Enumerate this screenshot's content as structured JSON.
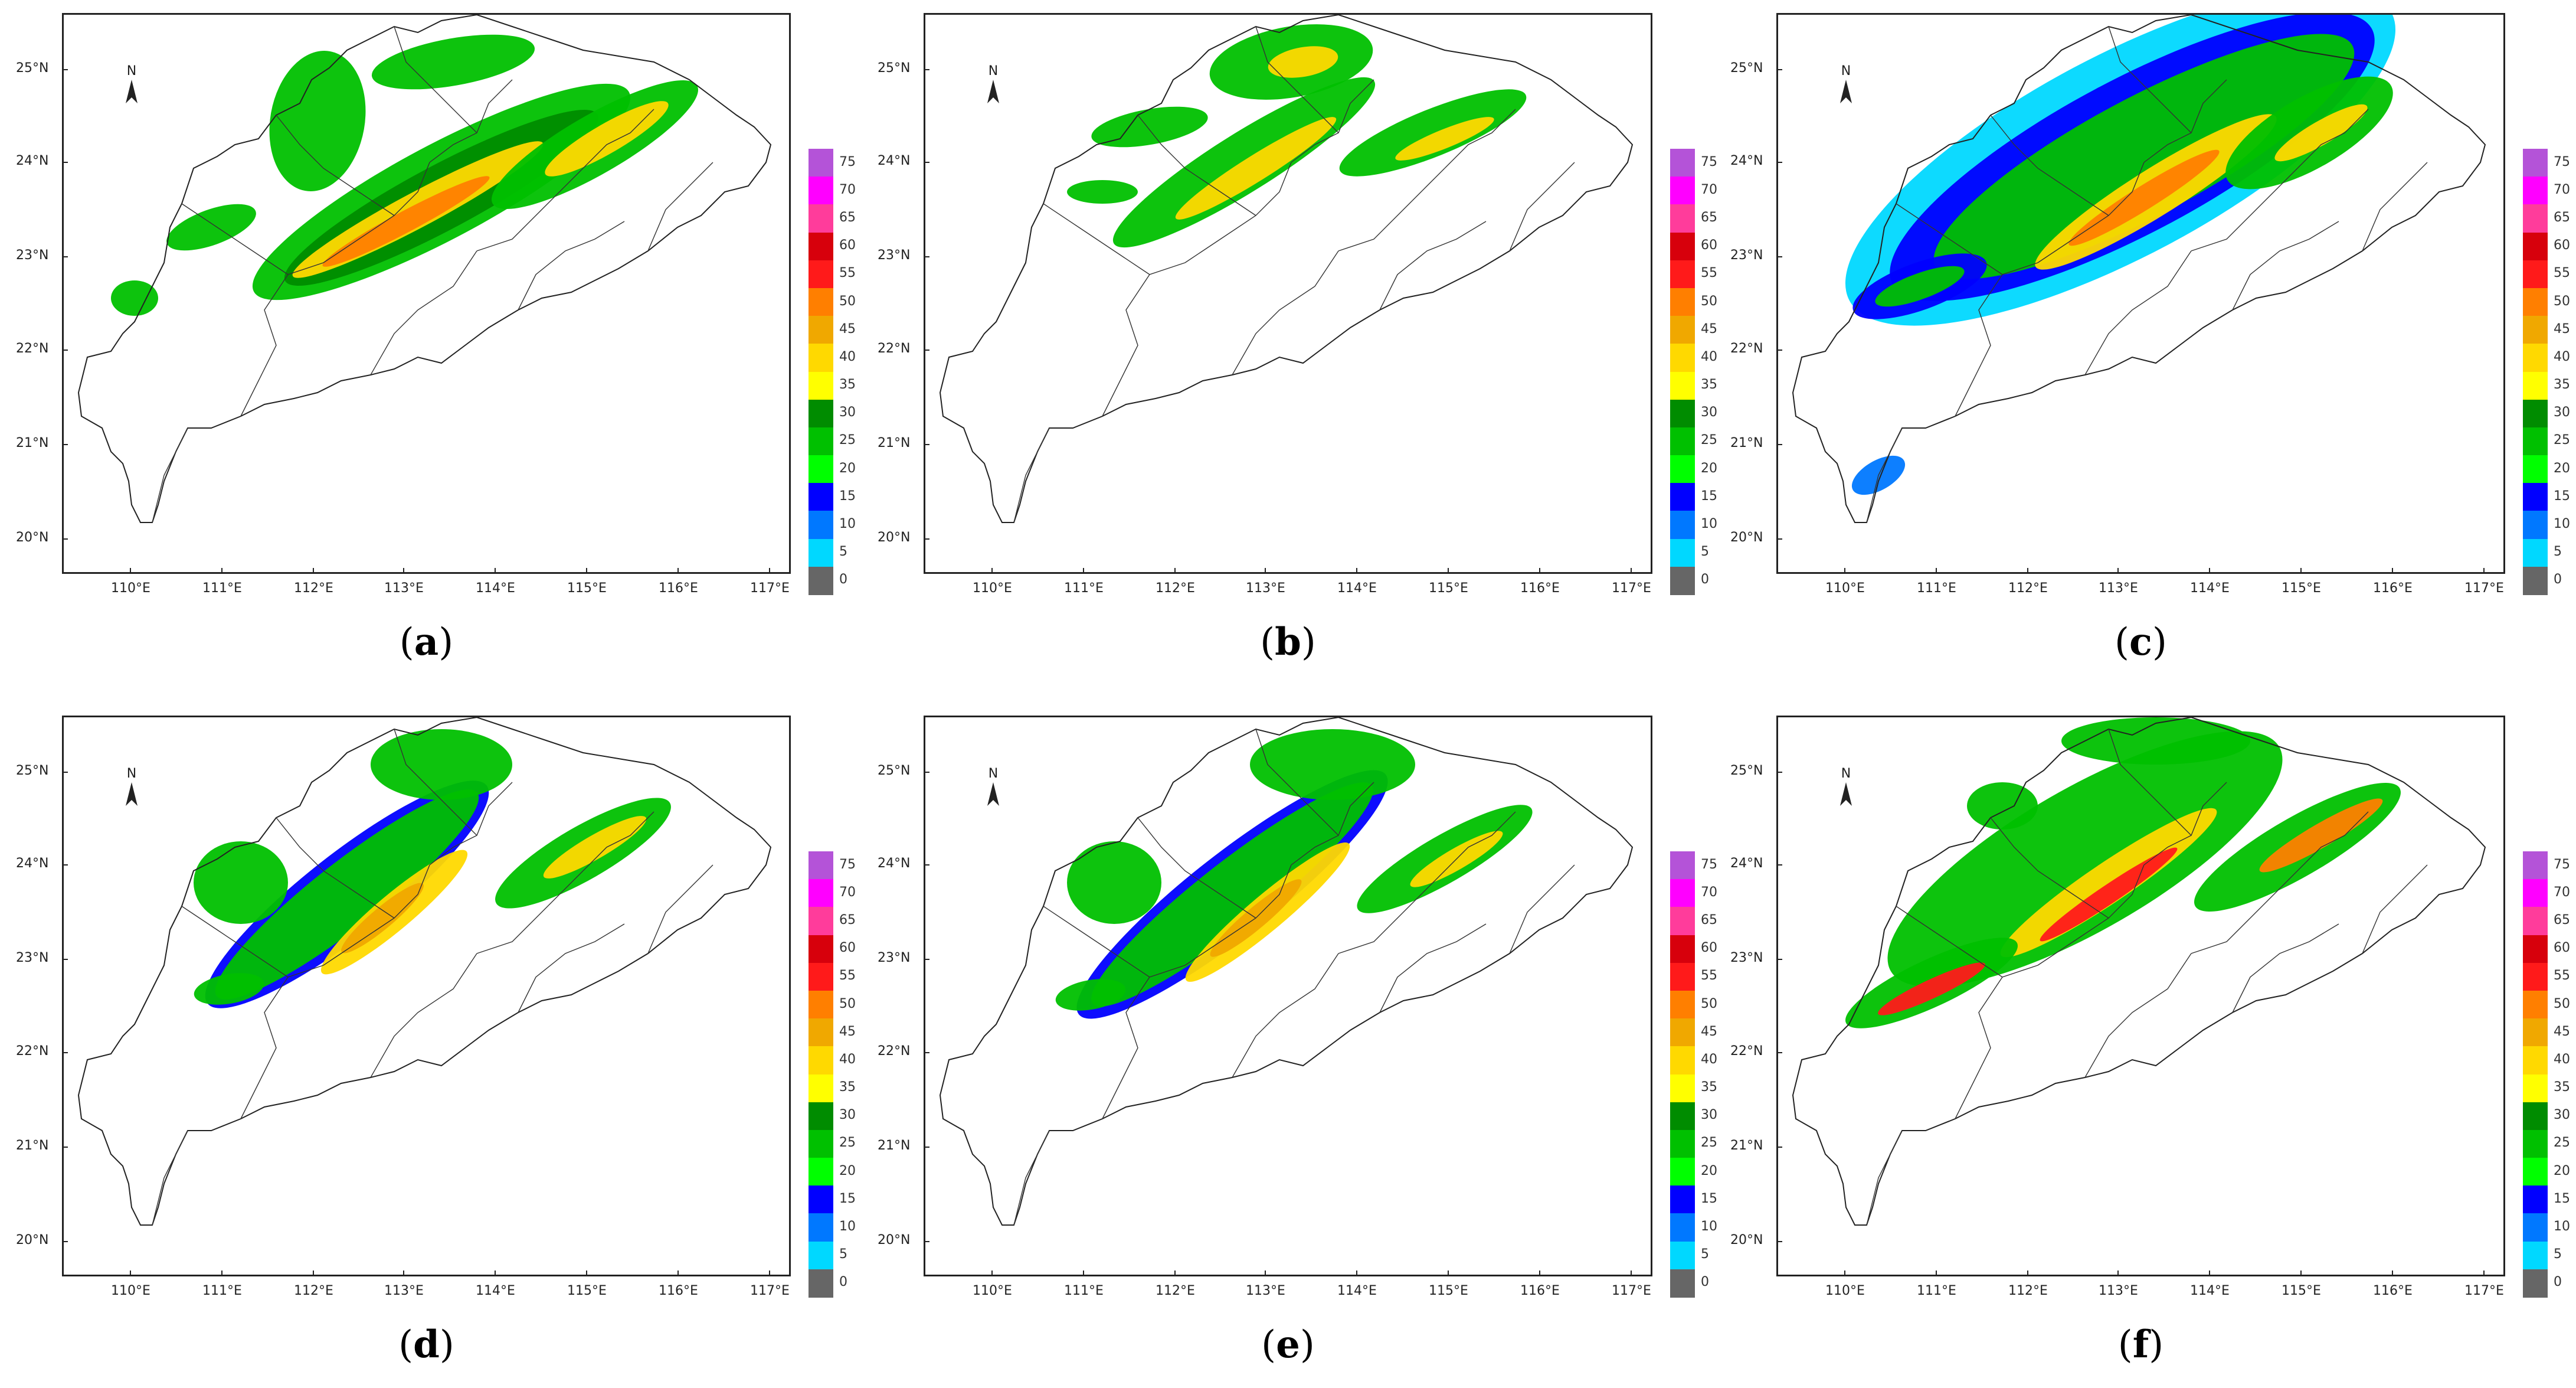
{
  "panels": [
    {
      "id": "a",
      "caption_letter": "a",
      "pattern": "obs"
    },
    {
      "id": "b",
      "caption_letter": "b",
      "pattern": "sparse"
    },
    {
      "id": "c",
      "caption_letter": "c",
      "pattern": "wide"
    },
    {
      "id": "d",
      "caption_letter": "d",
      "pattern": "smooth"
    },
    {
      "id": "e",
      "caption_letter": "e",
      "pattern": "smooth2"
    },
    {
      "id": "f",
      "caption_letter": "f",
      "pattern": "intense"
    }
  ],
  "axes": {
    "lat_labels": [
      "25°N",
      "24°N",
      "23°N",
      "22°N",
      "21°N",
      "20°N"
    ],
    "lon_labels": [
      "110°E",
      "111°E",
      "112°E",
      "113°E",
      "114°E",
      "115°E",
      "116°E",
      "117°E"
    ]
  },
  "north_label": "N",
  "colorbar": {
    "levels": [
      "75",
      "70",
      "65",
      "60",
      "55",
      "50",
      "45",
      "40",
      "35",
      "30",
      "25",
      "20",
      "15",
      "10",
      "5",
      "0"
    ],
    "colors": [
      "#b453d8",
      "#ff00ff",
      "#ff3c9b",
      "#d7000c",
      "#ff1a1a",
      "#ff7f00",
      "#f0a800",
      "#ffd900",
      "#ffff00",
      "#008c00",
      "#00c000",
      "#00ff00",
      "#0000ff",
      "#0078ff",
      "#00d8ff",
      "#666666"
    ]
  }
}
